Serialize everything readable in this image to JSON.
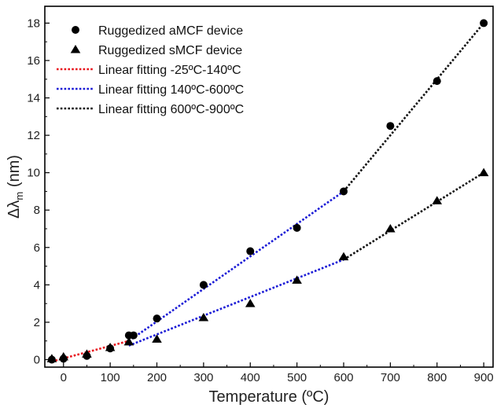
{
  "chart_data": {
    "type": "scatter",
    "xlabel": "Temperature (ºC)",
    "ylabel_main": "Δλ",
    "ylabel_sub": "m",
    "ylabel_unit": " (nm)",
    "xlim": [
      -40,
      920
    ],
    "ylim": [
      -0.4,
      18.9
    ],
    "x_ticks": [
      0,
      100,
      200,
      300,
      400,
      500,
      600,
      700,
      800,
      900
    ],
    "y_ticks": [
      0,
      2,
      4,
      6,
      8,
      10,
      12,
      14,
      16,
      18
    ],
    "grid": false,
    "legend_position": "top-left",
    "series": [
      {
        "name": "Ruggedized aMCF device",
        "marker": "circle",
        "color": "#000000",
        "x": [
          -25,
          0,
          50,
          100,
          140,
          150,
          200,
          300,
          400,
          500,
          600,
          700,
          800,
          900
        ],
        "y": [
          0.0,
          0.05,
          0.2,
          0.6,
          1.3,
          1.3,
          2.2,
          4.0,
          5.8,
          7.05,
          9.0,
          12.5,
          14.9,
          18.0
        ]
      },
      {
        "name": "Ruggedized sMCF device",
        "marker": "triangle",
        "color": "#000000",
        "x": [
          -25,
          0,
          50,
          100,
          140,
          200,
          300,
          400,
          500,
          600,
          700,
          800,
          900
        ],
        "y": [
          0.05,
          0.15,
          0.3,
          0.65,
          0.95,
          1.1,
          2.25,
          3.0,
          4.25,
          5.5,
          7.0,
          8.5,
          10.0
        ]
      }
    ],
    "fits": [
      {
        "name": "Linear fitting -25ºC-140ºC",
        "color": "#e8141c",
        "segments": [
          [
            -25,
            -0.1,
            140,
            1.0
          ]
        ]
      },
      {
        "name": "Linear fitting 140ºC-600ºC",
        "color": "#1a1ad6",
        "segments": [
          [
            140,
            1.0,
            600,
            9.0
          ],
          [
            140,
            0.75,
            600,
            5.35
          ]
        ]
      },
      {
        "name": "Linear fitting 600ºC-900ºC",
        "color": "#111111",
        "segments": [
          [
            600,
            9.0,
            900,
            18.0
          ],
          [
            600,
            5.35,
            900,
            10.0
          ]
        ]
      }
    ]
  }
}
